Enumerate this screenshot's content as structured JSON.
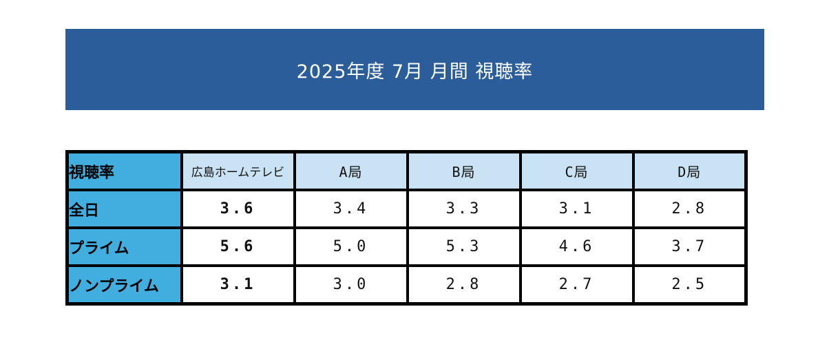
{
  "banner": {
    "title": "2025年度 7月 月間 視聴率",
    "bg_color": "#2A5D99",
    "text_color": "#FFFFFF"
  },
  "table": {
    "corner_label": "視聴率",
    "columns": [
      "広島ホームテレビ",
      "A局",
      "B局",
      "C局",
      "D局"
    ],
    "rows": [
      {
        "label": "全日",
        "values": [
          "3.6",
          "3.4",
          "3.3",
          "3.1",
          "2.8"
        ]
      },
      {
        "label": "プライム",
        "values": [
          "5.6",
          "5.0",
          "5.3",
          "4.6",
          "3.7"
        ]
      },
      {
        "label": "ノンプライム",
        "values": [
          "3.1",
          "3.0",
          "2.8",
          "2.7",
          "2.5"
        ]
      }
    ],
    "colors": {
      "row_header_bg": "#41AEE0",
      "col_header_bg": "#C9E3F4",
      "border": "#000000",
      "data_bg": "#FFFFFF"
    }
  },
  "chart_data": {
    "type": "table",
    "title": "2025年度 7月 月間 視聴率",
    "columns": [
      "視聴率",
      "広島ホームテレビ",
      "A局",
      "B局",
      "C局",
      "D局"
    ],
    "rows": [
      [
        "全日",
        3.6,
        3.4,
        3.3,
        3.1,
        2.8
      ],
      [
        "プライム",
        5.6,
        5.0,
        5.3,
        4.6,
        3.7
      ],
      [
        "ノンプライム",
        3.1,
        3.0,
        2.8,
        2.7,
        2.5
      ]
    ],
    "notes": "Monthly TV household ratings (%) for July FY2025; first data column (広島ホームテレビ) is emphasized in bold; row categories are all-day, prime time, non-prime time."
  }
}
